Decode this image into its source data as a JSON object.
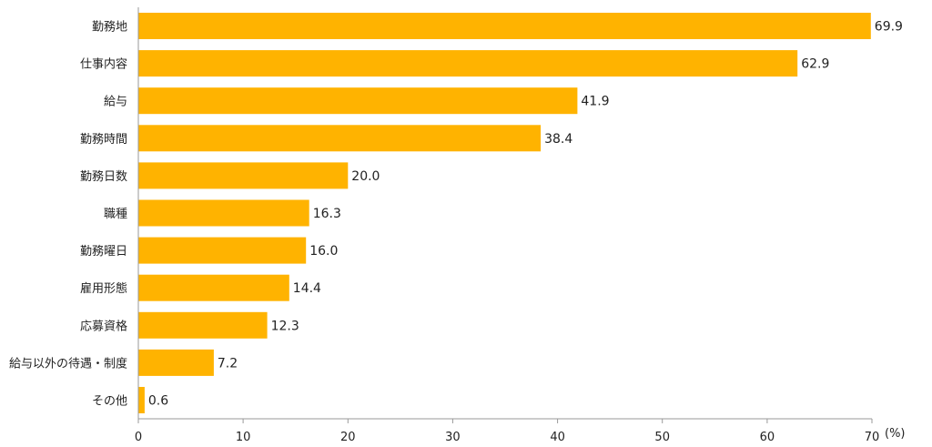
{
  "chart_data": {
    "type": "bar",
    "orientation": "horizontal",
    "categories": [
      "勤務地",
      "仕事内容",
      "給与",
      "勤務時間",
      "勤務日数",
      "職種",
      "勤務曜日",
      "雇用形態",
      "応募資格",
      "給与以外の待遇・制度",
      "その他"
    ],
    "values": [
      69.9,
      62.9,
      41.9,
      38.4,
      20.0,
      16.3,
      16.0,
      14.4,
      12.3,
      7.2,
      0.6
    ],
    "value_labels": [
      "69.9",
      "62.9",
      "41.9",
      "38.4",
      "20.0",
      "16.3",
      "16.0",
      "14.4",
      "12.3",
      "7.2",
      "0.6"
    ],
    "x_ticks": [
      "0",
      "10",
      "20",
      "30",
      "40",
      "50",
      "60",
      "70"
    ],
    "xlim": [
      0,
      70
    ],
    "unit_label": "(%)",
    "grid": false,
    "legend": "none",
    "bar_color": "#FFB300",
    "axis_color": "#999999"
  }
}
